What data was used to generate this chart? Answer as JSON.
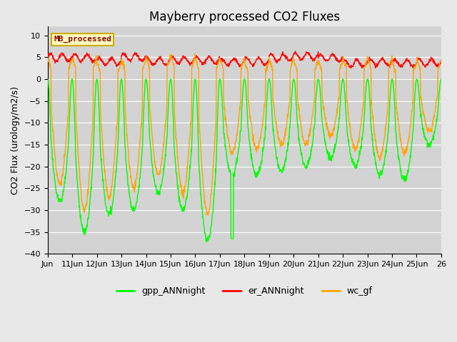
{
  "title": "Mayberry processed CO2 Fluxes",
  "ylabel": "CO2 Flux (urology/m2/s)",
  "ylim": [
    -40,
    12
  ],
  "yticks": [
    -40,
    -35,
    -30,
    -25,
    -20,
    -15,
    -10,
    -5,
    0,
    5,
    10
  ],
  "xlabel_dates": [
    "Jun",
    "11Jun",
    "12Jun",
    "13Jun",
    "14Jun",
    "15Jun",
    "16Jun",
    "17Jun",
    "18Jun",
    "19Jun",
    "20Jun",
    "21Jun",
    "22Jun",
    "23Jun",
    "24Jun",
    "25Jun",
    "26"
  ],
  "legend_labels": [
    "gpp_ANNnight",
    "er_ANNnight",
    "wc_gf"
  ],
  "line_colors": [
    "#00ff00",
    "#ff0000",
    "#ffa500"
  ],
  "line_width": 1.0,
  "background_color": "#e8e8e8",
  "plot_bg_color": "#d3d3d3",
  "legend_box_color": "#ffffc0",
  "legend_box_edge": "#ccaa00",
  "legend_text_color": "#880000",
  "title_fontsize": 12,
  "label_fontsize": 9,
  "tick_fontsize": 8,
  "n_points_per_day": 96,
  "n_days": 16
}
